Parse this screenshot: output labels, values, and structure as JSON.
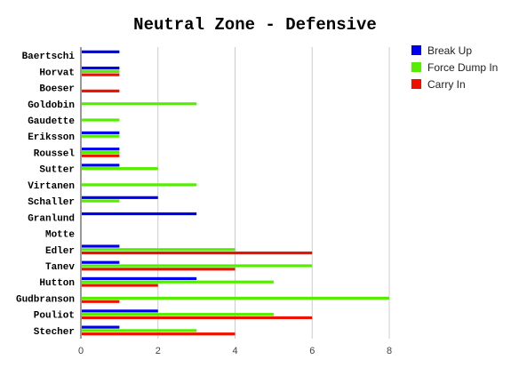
{
  "chart_data": {
    "type": "bar",
    "orientation": "horizontal",
    "title": "Neutral Zone - Defensive",
    "xlabel": "",
    "ylabel": "",
    "xlim": [
      0,
      8
    ],
    "xticks": [
      0,
      2,
      4,
      6,
      8
    ],
    "grid": true,
    "legend_position": "right",
    "categories": [
      "Baertschi",
      "Horvat",
      "Boeser",
      "Goldobin",
      "Gaudette",
      "Eriksson",
      "Roussel",
      "Sutter",
      "Virtanen",
      "Schaller",
      "Granlund",
      "Motte",
      "Edler",
      "Tanev",
      "Hutton",
      "Gudbranson",
      "Pouliot",
      "Stecher"
    ],
    "series": [
      {
        "name": "Break Up",
        "color": "#0000ee",
        "values": [
          1,
          1,
          0,
          0,
          0,
          1,
          1,
          1,
          0,
          2,
          3,
          0,
          1,
          1,
          3,
          0,
          2,
          1
        ]
      },
      {
        "name": "Force Dump In",
        "color": "#55ee00",
        "values": [
          0,
          1,
          0,
          3,
          1,
          1,
          1,
          2,
          3,
          1,
          0,
          0,
          4,
          6,
          5,
          8,
          5,
          3
        ]
      },
      {
        "name": "Carry In",
        "color": "#ee1100",
        "values": [
          0,
          1,
          1,
          0,
          0,
          0,
          1,
          0,
          0,
          0,
          0,
          0,
          6,
          4,
          2,
          1,
          6,
          4
        ]
      }
    ]
  }
}
